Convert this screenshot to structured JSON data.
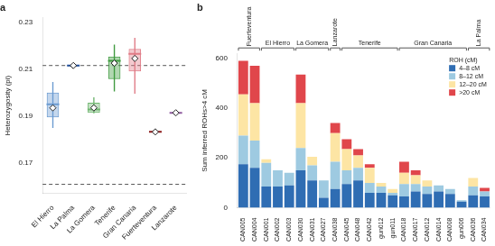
{
  "chart_data": [
    {
      "type": "box",
      "title": "a",
      "y_label": "Heterozygosity (pi)",
      "categories": [
        "El Hierro",
        "La Palma",
        "La Gomera",
        "Tenerife",
        "Gran Canaria",
        "Fuerteventura",
        "Lanzarote"
      ],
      "boxes": [
        {
          "min": 0.185,
          "q1": 0.1895,
          "median": 0.195,
          "q3": 0.2,
          "max": 0.2045
        },
        {
          "min": 0.2115,
          "q1": 0.2115,
          "median": 0.2115,
          "q3": 0.2115,
          "max": 0.2115
        },
        {
          "min": 0.1912,
          "q1": 0.1914,
          "median": 0.1928,
          "q3": 0.1957,
          "max": 0.198
        },
        {
          "min": 0.2005,
          "q1": 0.2057,
          "median": 0.2135,
          "q3": 0.2153,
          "max": 0.2204
        },
        {
          "min": 0.1995,
          "q1": 0.209,
          "median": 0.2165,
          "q3": 0.2186,
          "max": 0.2233
        },
        {
          "min": 0.1833,
          "q1": 0.1833,
          "median": 0.1833,
          "q3": 0.1833,
          "max": 0.1833
        },
        {
          "min": 0.1914,
          "q1": 0.1914,
          "median": 0.1914,
          "q3": 0.1914,
          "max": 0.1914
        }
      ],
      "means": [
        0.1935,
        0.2115,
        0.1935,
        0.2125,
        0.2145,
        0.1833,
        0.1914
      ],
      "colors": [
        "#6b9bd1",
        "#1f4e9a",
        "#6fb56f",
        "#3f9a3f",
        "#e07b86",
        "#8b1a1a",
        "#8e5a9e"
      ],
      "ylim": [
        0.157,
        0.232
      ],
      "yticks": [
        0.17,
        0.19,
        0.21,
        0.23
      ],
      "reference_lines": [
        0.2115,
        0.161
      ],
      "grid": false
    },
    {
      "type": "bar",
      "stacked": true,
      "title": "b",
      "y_label": "Sum inferred ROHs>4 cM",
      "categories": [
        "CAN005",
        "CAN004",
        "CAN001",
        "CAN002",
        "CAN003",
        "CAN030",
        "CAN031",
        "CAN027",
        "CAN038",
        "CAN045",
        "CAN048",
        "CAN042",
        "gun012",
        "gun011",
        "CAN018",
        "CAN017",
        "CAN012",
        "CAN014",
        "CAN008",
        "gun006",
        "CAN036",
        "CAN034"
      ],
      "series": [
        {
          "name": "4–8 cM",
          "color": "#2f6db3",
          "values": [
            175,
            160,
            85,
            85,
            90,
            150,
            110,
            40,
            75,
            95,
            110,
            60,
            60,
            50,
            45,
            65,
            55,
            65,
            55,
            25,
            50,
            45
          ]
        },
        {
          "name": "8–12 cM",
          "color": "#9ecae1",
          "values": [
            115,
            110,
            95,
            65,
            50,
            90,
            60,
            70,
            110,
            55,
            50,
            40,
            25,
            10,
            50,
            30,
            30,
            25,
            20,
            5,
            35,
            20
          ]
        },
        {
          "name": "12–20 cM",
          "color": "#fde5a4",
          "values": [
            165,
            150,
            15,
            0,
            0,
            180,
            35,
            0,
            115,
            85,
            50,
            60,
            15,
            15,
            45,
            35,
            25,
            0,
            0,
            0,
            35,
            0
          ]
        },
        {
          "name": ">20 cM",
          "color": "#e0464b",
          "values": [
            135,
            150,
            0,
            0,
            0,
            115,
            0,
            0,
            40,
            40,
            25,
            15,
            0,
            0,
            45,
            20,
            0,
            0,
            0,
            0,
            0,
            15
          ]
        }
      ],
      "ylim": [
        0,
        620
      ],
      "yticks": [
        0,
        200,
        400,
        600
      ],
      "legend": "top-right",
      "legend_title": "ROH (cM)",
      "groups": [
        {
          "label": "Fuerteventura",
          "categories": [
            "CAN005",
            "CAN004"
          ]
        },
        {
          "label": "El Hierro",
          "categories": [
            "CAN001",
            "CAN002",
            "CAN003"
          ]
        },
        {
          "label": "La Gomera",
          "categories": [
            "CAN030",
            "CAN031",
            "CAN027"
          ]
        },
        {
          "label": "Lanzarote",
          "categories": [
            "CAN038"
          ]
        },
        {
          "label": "Tenerife",
          "categories": [
            "CAN045",
            "CAN048",
            "CAN042",
            "gun012",
            "gun011"
          ]
        },
        {
          "label": "Gran Canaria",
          "categories": [
            "CAN018",
            "CAN017",
            "CAN012",
            "CAN014",
            "CAN008",
            "gun006"
          ]
        },
        {
          "label": "La Palma",
          "categories": [
            "CAN036",
            "CAN034"
          ]
        }
      ],
      "grid": false
    }
  ]
}
